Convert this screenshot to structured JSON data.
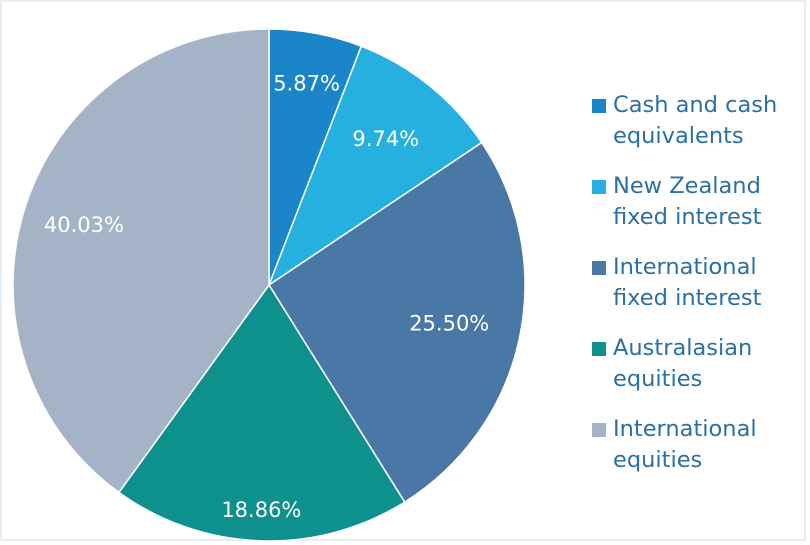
{
  "chart_data": {
    "type": "pie",
    "categories": [
      "Cash and cash equivalents",
      "New Zealand fixed interest",
      "International fixed interest",
      "Australasian equities",
      "International equities"
    ],
    "values": [
      5.87,
      9.74,
      25.5,
      18.86,
      40.03
    ],
    "labels": [
      "5.87%",
      "9.74%",
      "25.50%",
      "18.86%",
      "40.03%"
    ],
    "colors": [
      "#1a85c8",
      "#25b0e0",
      "#4a78a6",
      "#0e918d",
      "#a4b4c6"
    ],
    "legend_placement": "right",
    "legend": [
      {
        "line1": "Cash and cash",
        "line2": "equivalents"
      },
      {
        "line1": "New Zealand",
        "line2": "fixed interest"
      },
      {
        "line1": "International",
        "line2": "fixed interest"
      },
      {
        "line1": "Australasian",
        "line2": "equities"
      },
      {
        "line1": "International",
        "line2": "equities"
      }
    ]
  }
}
